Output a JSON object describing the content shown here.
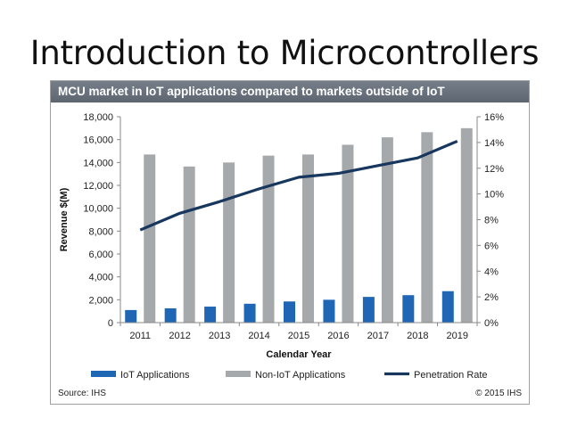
{
  "slide": {
    "title": "Introduction to Microcontrollers"
  },
  "chart_data": {
    "type": "bar",
    "title": "MCU market in IoT applications compared to markets outside of IoT",
    "categories": [
      "2011",
      "2012",
      "2013",
      "2014",
      "2015",
      "2016",
      "2017",
      "2018",
      "2019"
    ],
    "series": [
      {
        "name": "IoT Applications",
        "type": "bar",
        "axis": "left",
        "color": "#1f67b4",
        "values": [
          1100,
          1250,
          1400,
          1650,
          1850,
          2000,
          2250,
          2400,
          2750
        ]
      },
      {
        "name": "Non-IoT Applications",
        "type": "bar",
        "axis": "left",
        "color": "#a6a9ab",
        "values": [
          14700,
          13650,
          14000,
          14600,
          14700,
          15550,
          16200,
          16650,
          17000
        ]
      },
      {
        "name": "Penetration Rate",
        "type": "line",
        "axis": "right",
        "color": "#17375e",
        "values": [
          7.2,
          8.5,
          9.4,
          10.4,
          11.3,
          11.6,
          12.2,
          12.8,
          14.1
        ]
      }
    ],
    "xlabel": "Calendar Year",
    "ylabel": "Revenue $(M)",
    "ylim": [
      0,
      18000
    ],
    "y_ticks": [
      0,
      2000,
      4000,
      6000,
      8000,
      10000,
      12000,
      14000,
      16000,
      18000
    ],
    "y_tick_labels": [
      "0",
      "2,000",
      "4,000",
      "6,000",
      "8,000",
      "10,000",
      "12,000",
      "14,000",
      "16,000",
      "18,000"
    ],
    "y2lim": [
      0,
      16
    ],
    "y2_ticks": [
      0,
      2,
      4,
      6,
      8,
      10,
      12,
      14,
      16
    ],
    "y2_tick_labels": [
      "0%",
      "2%",
      "4%",
      "6%",
      "8%",
      "10%",
      "12%",
      "14%",
      "16%"
    ],
    "grid": false,
    "legend_position": "bottom",
    "source": "Source: IHS",
    "copyright": "© 2015 IHS"
  }
}
